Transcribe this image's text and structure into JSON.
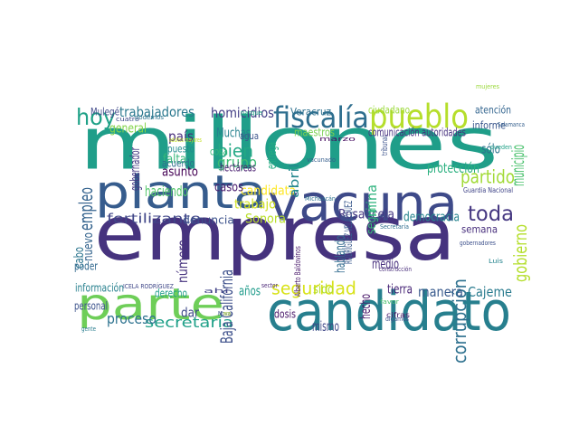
{
  "words": [
    {
      "text": "empresa",
      "color": "#46337e"
    },
    {
      "text": "millones",
      "color": "#1f9e89"
    },
    {
      "text": "candidato",
      "color": "#277f8e"
    },
    {
      "text": "vacuna",
      "color": "#3e4a89"
    },
    {
      "text": "planta",
      "color": "#365c8d"
    },
    {
      "text": "parte",
      "color": "#6ece58"
    },
    {
      "text": "pueblo",
      "color": "#b5de2b"
    },
    {
      "text": "fiscalía",
      "color": "#2e6e8e"
    },
    {
      "text": "hoy",
      "color": "#1fa187"
    },
    {
      "text": "toda",
      "color": "#453781"
    },
    {
      "text": "partido",
      "color": "#a2da37"
    },
    {
      "text": "municipio",
      "color": "#4ac16d"
    },
    {
      "text": "bien",
      "color": "#22a884"
    },
    {
      "text": "grupo",
      "color": "#3dbc74"
    },
    {
      "text": "seguridad",
      "color": "#d8e219"
    },
    {
      "text": "secretaría",
      "color": "#1fa088"
    },
    {
      "text": "proceso",
      "color": "#2c718e"
    },
    {
      "text": "empleo",
      "color": "#33628d"
    },
    {
      "text": "corrupción",
      "color": "#2d708e"
    },
    {
      "text": "fertilizante",
      "color": "#404688"
    },
    {
      "text": "homicidios",
      "color": "#433e85"
    },
    {
      "text": "trabajadores",
      "color": "#2a788e"
    },
    {
      "text": "país",
      "color": "#472c7a"
    },
    {
      "text": "Rosa Icela",
      "color": "#453882"
    },
    {
      "text": "democracia",
      "color": "#25848e"
    },
    {
      "text": "protección",
      "color": "#2ab07f"
    },
    {
      "text": "Cajeme",
      "color": "#297b8e"
    },
    {
      "text": "manera",
      "color": "#37598c"
    },
    {
      "text": "Sonora",
      "color": "#b8de29"
    },
    {
      "text": "denuncia",
      "color": "#3b518b"
    },
    {
      "text": "haciendo",
      "color": "#52c569"
    },
    {
      "text": "candidata",
      "color": "#fde725"
    },
    {
      "text": "trabajo",
      "color": "#d0e11c"
    },
    {
      "text": "casos",
      "color": "#481b6d"
    },
    {
      "text": "Muchas",
      "color": "#26818e"
    },
    {
      "text": "asunto",
      "color": "#440154"
    },
    {
      "text": "falta",
      "color": "#35b779"
    },
    {
      "text": "general",
      "color": "#84d44b"
    },
    {
      "text": "medio",
      "color": "#472f7d"
    },
    {
      "text": "años",
      "color": "#1e9b8a"
    },
    {
      "text": "mismo",
      "color": "#3f4788"
    },
    {
      "text": "sido",
      "color": "#b2dd2d"
    },
    {
      "text": "dosis",
      "color": "#481769"
    },
    {
      "text": "tierra",
      "color": "#482677"
    },
    {
      "text": "semana",
      "color": "#472e7c"
    },
    {
      "text": "informe",
      "color": "#39558c"
    },
    {
      "text": "atención",
      "color": "#32648e"
    },
    {
      "text": "sólo",
      "color": "#2c728e"
    },
    {
      "text": "maestros",
      "color": "#7ad151"
    },
    {
      "text": "ciudadano",
      "color": "#9bd93c"
    },
    {
      "text": "comunicación autoridades",
      "color": "#46307e"
    },
    {
      "text": "gobierno",
      "color": "#b4de2c"
    },
    {
      "text": "Baja California",
      "color": "#3c4f8a"
    },
    {
      "text": "información",
      "color": "#27808e"
    },
    {
      "text": "derecho",
      "color": "#1e9d89"
    },
    {
      "text": "poder",
      "color": "#31688e"
    },
    {
      "text": "número",
      "color": "#46327e"
    },
    {
      "text": "nuevo",
      "color": "#33638d"
    },
    {
      "text": "Veracruz",
      "color": "#2d708e"
    },
    {
      "text": "Mulegé",
      "color": "#3f4889"
    },
    {
      "text": "puesto",
      "color": "#228c8d"
    },
    {
      "text": "cosa",
      "color": "#35b779"
    },
    {
      "text": "acuerdo",
      "color": "#2e6d8e"
    },
    {
      "text": "hectáreas",
      "color": "#481d6f"
    },
    {
      "text": "agua",
      "color": "#3a538b"
    },
    {
      "text": "mujeres",
      "color": "#9bd93c"
    },
    {
      "text": "dar",
      "color": "#3e4989"
    },
    {
      "text": "hecho",
      "color": "#481769"
    },
    {
      "text": "hablando",
      "color": "#306a8e"
    },
    {
      "text": "seguir",
      "color": "#37b878"
    },
    {
      "text": "mina",
      "color": "#2db27d"
    },
    {
      "text": "entrega",
      "color": "#25ac82"
    },
    {
      "text": "abril",
      "color": "#24878e"
    },
    {
      "text": "personal",
      "color": "#3b528b"
    },
    {
      "text": "cabo",
      "color": "#2b748e"
    },
    {
      "text": "gobernador",
      "color": "#443983"
    },
    {
      "text": "cuatro",
      "color": "#3e4989"
    },
    {
      "text": "podemos",
      "color": "#2c738e"
    },
    {
      "text": "adultos mayores",
      "color": "#c2df23"
    },
    {
      "text": "RODRÍGUEZ VELÁZQUEZ",
      "color": "#38588c"
    },
    {
      "text": "Michoacán",
      "color": "#2c728e"
    },
    {
      "text": "Guardia Nacional",
      "color": "#404588"
    },
    {
      "text": "Secretaría",
      "color": "#2f6c8e"
    },
    {
      "text": "gobernadores",
      "color": "#3c508b"
    },
    {
      "text": "construcción",
      "color": "#472c7a"
    },
    {
      "text": "Luis",
      "color": "#25848e"
    },
    {
      "text": "ICELA RODRÍGUEZ",
      "color": "#3f4788"
    },
    {
      "text": "favor",
      "color": "#4ac16d"
    },
    {
      "text": "cifras",
      "color": "#481668"
    },
    {
      "text": "digamos",
      "color": "#3b528b"
    },
    {
      "text": "pueden",
      "color": "#1fa187"
    },
    {
      "text": "Salamanca",
      "color": "#355f8d"
    },
    {
      "text": "Alberto Baldovinos",
      "color": "#48186a"
    },
    {
      "text": "tribunal",
      "color": "#3b528b"
    },
    {
      "text": "vacunado",
      "color": "#355e8d"
    },
    {
      "text": "sector",
      "color": "#482475"
    },
    {
      "text": "gente",
      "color": "#287c8e"
    },
    {
      "text": "Nova",
      "color": "#3a538b"
    },
    {
      "text": "marzo",
      "color": "#470d60"
    },
    {
      "text": "mexicanos",
      "color": "#bddf26"
    },
    {
      "text": "ahí",
      "color": "#414287"
    },
    {
      "text": "parque",
      "color": "#22a884"
    },
    {
      "text": "porque",
      "color": "#a8db34"
    }
  ]
}
